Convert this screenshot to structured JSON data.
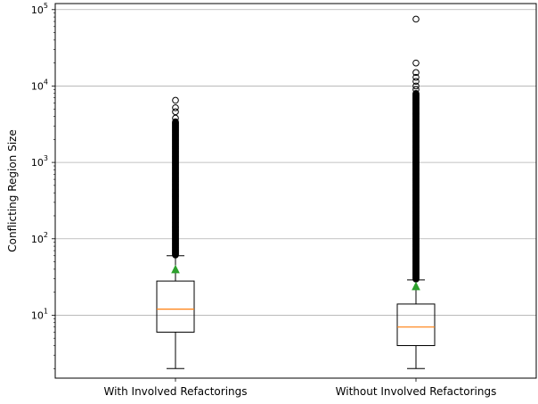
{
  "chart_data": {
    "type": "box",
    "title": "",
    "xlabel": "",
    "ylabel": "Conflicting Region Size",
    "yscale": "log",
    "ylim": [
      1.5,
      120000
    ],
    "grid": "y-major",
    "y_ticks": [
      {
        "value": 10,
        "label": "10",
        "exp": "1"
      },
      {
        "value": 100,
        "label": "10",
        "exp": "2"
      },
      {
        "value": 1000,
        "label": "10",
        "exp": "3"
      },
      {
        "value": 10000,
        "label": "10",
        "exp": "4"
      },
      {
        "value": 100000,
        "label": "10",
        "exp": "5"
      }
    ],
    "categories": [
      "With Involved Refactorings",
      "Without Involved Refactorings"
    ],
    "boxes": [
      {
        "category": "With Involved Refactorings",
        "whisker_low": 2,
        "q1": 6,
        "median": 12,
        "q3": 28,
        "whisker_high": 60,
        "mean": 40,
        "outlier_max": 6500,
        "outliers_top": [
          6500,
          5200,
          4600,
          3800,
          3400
        ]
      },
      {
        "category": "Without Involved Refactorings",
        "whisker_low": 2,
        "q1": 4,
        "median": 7,
        "q3": 14,
        "whisker_high": 29,
        "mean": 24,
        "outlier_max": 75000,
        "outliers_top": [
          75000,
          20000,
          15000,
          13000,
          11500,
          10000,
          9000,
          8000
        ]
      }
    ],
    "colors": {
      "median": "#ff7f0e",
      "mean": "#2ca02c",
      "box": "#000000",
      "grid": "#b0b0b0"
    }
  }
}
